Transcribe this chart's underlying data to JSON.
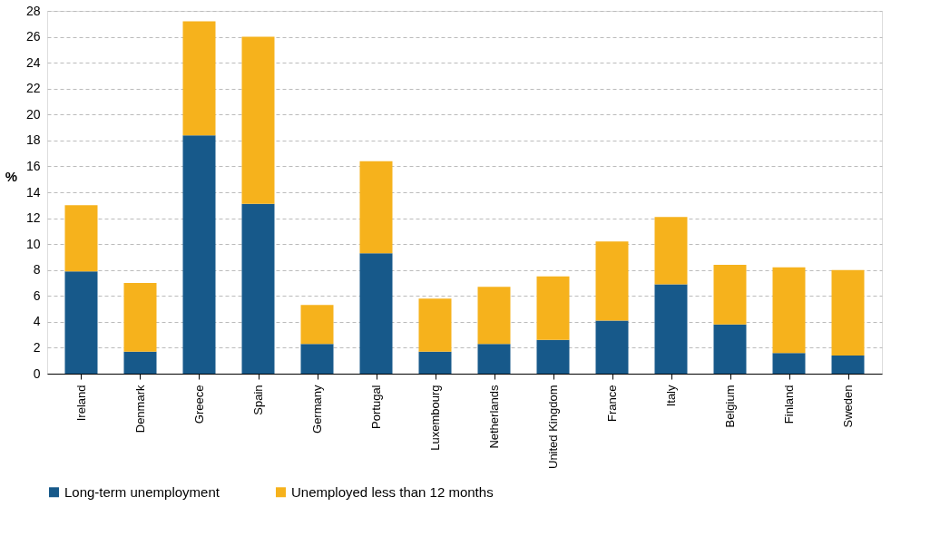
{
  "chart_data": {
    "type": "bar",
    "stacked": true,
    "ylabel": "%",
    "categories": [
      "Ireland",
      "Denmark",
      "Greece",
      "Spain",
      "Germany",
      "Portugal",
      "Luxembourg",
      "Netherlands",
      "United Kingdom",
      "France",
      "Italy",
      "Belgium",
      "Finland",
      "Sweden"
    ],
    "series": [
      {
        "name": "Long-term unemployment",
        "color": "#17598a",
        "values": [
          7.9,
          1.7,
          18.4,
          13.1,
          2.3,
          9.3,
          1.7,
          2.3,
          2.6,
          4.1,
          6.9,
          3.8,
          1.6,
          1.4
        ]
      },
      {
        "name": "Unemployed less than 12 months",
        "color": "#f6b21c",
        "values": [
          5.1,
          5.3,
          8.8,
          12.9,
          3.0,
          7.1,
          4.1,
          4.4,
          4.9,
          6.1,
          5.2,
          4.6,
          6.6,
          6.6
        ]
      }
    ],
    "ylim": [
      0,
      28
    ],
    "yticks": [
      0,
      2,
      4,
      6,
      8,
      10,
      12,
      14,
      16,
      18,
      20,
      22,
      24,
      26,
      28
    ],
    "grid": "y",
    "legend": "bottom"
  }
}
